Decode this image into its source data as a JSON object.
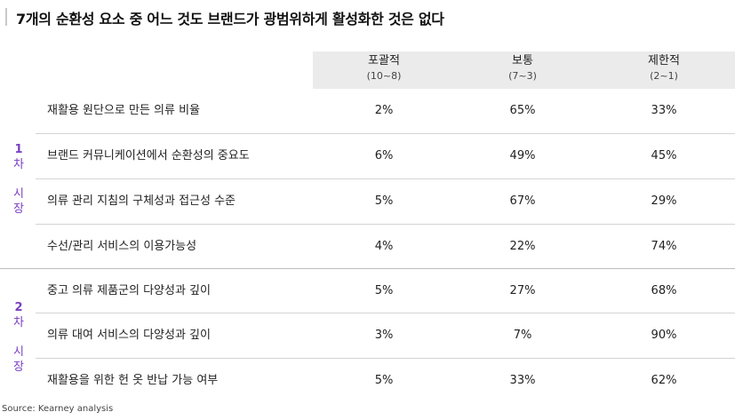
{
  "title": "7개의 순환성 요소 중 어느 것도 브랜드가 광범위하게 활성화한 것은 없다",
  "source": "Source: Kearney analysis",
  "columns": [
    {
      "label": "포괄적",
      "range": "(10~8)"
    },
    {
      "label": "보통",
      "range": "(7~3)"
    },
    {
      "label": "제한적",
      "range": "(2~1)"
    }
  ],
  "groups": [
    {
      "num": "1",
      "c1": "차",
      "c2": "시",
      "c3": "장"
    },
    {
      "num": "2",
      "c1": "차",
      "c2": "시",
      "c3": "장"
    }
  ],
  "rows": [
    {
      "label": "재활용 원단으로 만든 의류 비율",
      "v": [
        "2%",
        "65%",
        "33%"
      ]
    },
    {
      "label": "브랜드 커뮤니케이션에서 순환성의 중요도",
      "v": [
        "6%",
        "49%",
        "45%"
      ]
    },
    {
      "label": "의류 관리 지침의 구체성과 접근성 수준",
      "v": [
        "5%",
        "67%",
        "29%"
      ]
    },
    {
      "label": "수선/관리 서비스의 이용가능성",
      "v": [
        "4%",
        "22%",
        "74%"
      ]
    },
    {
      "label": "중고 의류 제품군의 다양성과 깊이",
      "v": [
        "5%",
        "27%",
        "68%"
      ]
    },
    {
      "label": "의류 대여 서비스의 다양성과 깊이",
      "v": [
        "3%",
        "7%",
        "90%"
      ]
    },
    {
      "label": "재활용을 위한 헌 옷 반납 가능 여부",
      "v": [
        "5%",
        "33%",
        "62%"
      ]
    }
  ],
  "chart_data": {
    "type": "table",
    "title": "7개의 순환성 요소 중 어느 것도 브랜드가 광범위하게 활성화한 것은 없다",
    "columns": [
      "포괄적 (10~8)",
      "보통 (7~3)",
      "제한적 (2~1)"
    ],
    "row_groups": [
      {
        "name": "1차 시장",
        "rows": [
          {
            "label": "재활용 원단으로 만든 의류 비율",
            "values": [
              2,
              65,
              33
            ]
          },
          {
            "label": "브랜드 커뮤니케이션에서 순환성의 중요도",
            "values": [
              6,
              49,
              45
            ]
          },
          {
            "label": "의류 관리 지침의 구체성과 접근성 수준",
            "values": [
              5,
              67,
              29
            ]
          },
          {
            "label": "수선/관리 서비스의 이용가능성",
            "values": [
              4,
              22,
              74
            ]
          }
        ]
      },
      {
        "name": "2차 시장",
        "rows": [
          {
            "label": "중고 의류 제품군의 다양성과 깊이",
            "values": [
              5,
              27,
              68
            ]
          },
          {
            "label": "의류 대여 서비스의 다양성과 깊이",
            "values": [
              3,
              7,
              90
            ]
          },
          {
            "label": "재활용을 위한 헌 옷 반납 가능 여부",
            "values": [
              5,
              33,
              62
            ]
          }
        ]
      }
    ],
    "unit": "%"
  },
  "colors": {
    "accent": "#7a3fc1",
    "header_bg": "#ebebeb",
    "separator": "#d4d4d4"
  }
}
